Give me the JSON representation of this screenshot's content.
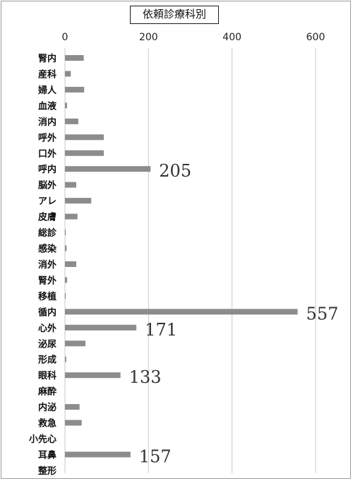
{
  "chart_data": {
    "type": "bar",
    "orientation": "horizontal",
    "title": "依頼診療科別",
    "xlabel": "",
    "ylabel": "",
    "xlim": [
      0,
      600
    ],
    "xticks": [
      0,
      200,
      400,
      600
    ],
    "grid": true,
    "legend": "none",
    "bar_color": "#8c8c8c",
    "categories": [
      "腎内",
      "産科",
      "婦人",
      "血液",
      "消内",
      "呼外",
      "口外",
      "呼内",
      "脳外",
      "アレ",
      "皮膚",
      "総診",
      "感染",
      "消外",
      "腎外",
      "移植",
      "循内",
      "心外",
      "泌尿",
      "形成",
      "眼科",
      "麻酔",
      "内泌",
      "救急",
      "小先心",
      "耳鼻",
      "整形"
    ],
    "values": [
      45,
      14,
      46,
      5,
      32,
      93,
      93,
      205,
      27,
      63,
      30,
      2,
      4,
      27,
      5,
      2,
      557,
      171,
      49,
      3,
      133,
      0,
      35,
      40,
      0,
      157,
      0
    ],
    "annotations": [
      {
        "category": "呼内",
        "text": "205"
      },
      {
        "category": "循内",
        "text": "557"
      },
      {
        "category": "心外",
        "text": "171"
      },
      {
        "category": "眼科",
        "text": "133"
      },
      {
        "category": "耳鼻",
        "text": "157"
      }
    ]
  }
}
